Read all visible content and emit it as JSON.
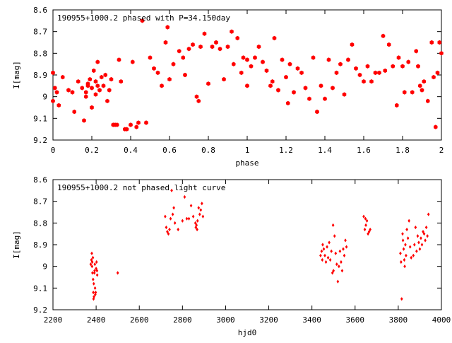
{
  "chart_data": [
    {
      "type": "scatter",
      "title": "190955+1000.2 phased with P=34.150day",
      "xlabel": "phase",
      "ylabel": "I[mag]",
      "xlim": [
        0,
        2
      ],
      "ylim": [
        8.6,
        9.2
      ],
      "y_inverted": true,
      "xticks": [
        0,
        0.2,
        0.4,
        0.6,
        0.8,
        1,
        1.2,
        1.4,
        1.6,
        1.8,
        2
      ],
      "xtick_labels": [
        "0",
        "0.2",
        "0.4",
        "0.6",
        "0.8",
        "1",
        "1.2",
        "1.4",
        "1.6",
        "1.8",
        "2"
      ],
      "yticks": [
        8.6,
        8.7,
        8.8,
        8.9,
        9.0,
        9.1,
        9.2
      ],
      "ytick_labels": [
        "8.6",
        "8.7",
        "8.8",
        "8.9",
        "9",
        "9.1",
        "9.2"
      ],
      "grid": false,
      "marker_color": "#ff0000",
      "marker": "hexagon",
      "series": [
        {
          "x": [
            0.0,
            0.0,
            0.01,
            0.02,
            0.03,
            0.05,
            0.08,
            0.1,
            0.11,
            0.13,
            0.15,
            0.16,
            0.17,
            0.17,
            0.18,
            0.18,
            0.19,
            0.2,
            0.2,
            0.21,
            0.22,
            0.22,
            0.23,
            0.23,
            0.24,
            0.25,
            0.26,
            0.27,
            0.28,
            0.29,
            0.3,
            0.31,
            0.32,
            0.33,
            0.34,
            0.35,
            0.37,
            0.38,
            0.4,
            0.41,
            0.43,
            0.44,
            0.46,
            0.48,
            0.5,
            0.52,
            0.54,
            0.56,
            0.58,
            0.59,
            0.6,
            0.62,
            0.65,
            0.67,
            0.68,
            0.7,
            0.72,
            0.74,
            0.75,
            0.76,
            0.78,
            0.8,
            0.82,
            0.84,
            0.86,
            0.88,
            0.9,
            0.92,
            0.93,
            0.95,
            0.97,
            0.98,
            1.0,
            1.0,
            1.02,
            1.04,
            1.06,
            1.08,
            1.1,
            1.12,
            1.13,
            1.14,
            1.16,
            1.18,
            1.2,
            1.21,
            1.22,
            1.24,
            1.26,
            1.28,
            1.3,
            1.32,
            1.34,
            1.36,
            1.38,
            1.4,
            1.42,
            1.44,
            1.46,
            1.48,
            1.5,
            1.52,
            1.54,
            1.56,
            1.58,
            1.6,
            1.62,
            1.64,
            1.66,
            1.68,
            1.7,
            1.71,
            1.73,
            1.75,
            1.77,
            1.78,
            1.8,
            1.81,
            1.83,
            1.85,
            1.87,
            1.88,
            1.89,
            1.9,
            1.91,
            1.93,
            1.95,
            1.96,
            1.97,
            1.98,
            1.99,
            2.0
          ],
          "y": [
            8.89,
            9.02,
            8.96,
            8.98,
            9.04,
            8.91,
            8.97,
            8.98,
            9.07,
            8.93,
            8.96,
            9.11,
            8.98,
            9.0,
            8.94,
            8.95,
            8.92,
            8.96,
            9.05,
            8.88,
            8.93,
            8.99,
            8.84,
            8.95,
            8.97,
            8.91,
            8.95,
            8.9,
            9.02,
            8.97,
            8.92,
            9.13,
            9.13,
            9.13,
            8.83,
            8.93,
            9.15,
            9.15,
            9.13,
            8.84,
            9.14,
            9.12,
            8.65,
            9.12,
            8.82,
            8.87,
            8.89,
            8.95,
            8.75,
            8.68,
            8.92,
            8.85,
            8.79,
            8.82,
            8.9,
            8.78,
            8.76,
            9.0,
            9.02,
            8.77,
            8.71,
            8.94,
            8.77,
            8.75,
            8.78,
            8.92,
            8.77,
            8.7,
            8.85,
            8.73,
            8.89,
            8.82,
            8.95,
            8.83,
            8.86,
            8.82,
            8.77,
            8.84,
            8.88,
            8.95,
            8.93,
            8.73,
            8.97,
            8.83,
            8.91,
            9.03,
            8.85,
            8.98,
            8.87,
            8.89,
            8.96,
            9.01,
            8.82,
            9.07,
            8.95,
            9.01,
            8.83,
            8.96,
            8.89,
            8.85,
            8.99,
            8.83,
            8.76,
            8.87,
            8.9,
            8.93,
            8.86,
            8.93,
            8.89,
            8.89,
            8.72,
            8.88,
            8.76,
            8.86,
            9.04,
            8.82,
            8.86,
            8.98,
            8.84,
            8.98,
            8.79,
            8.86,
            8.95,
            8.97,
            8.93,
            9.02,
            8.75,
            8.91,
            9.14,
            8.89,
            8.75,
            8.8
          ],
          "name": ""
        }
      ]
    },
    {
      "type": "scatter",
      "title": "190955+1000.2 not phased light curve",
      "xlabel": "hjd0",
      "ylabel": "I[mag]",
      "xlim": [
        2200,
        4000
      ],
      "ylim": [
        8.6,
        9.2
      ],
      "y_inverted": true,
      "xticks": [
        2200,
        2400,
        2600,
        2800,
        3000,
        3200,
        3400,
        3600,
        3800,
        4000
      ],
      "xtick_labels": [
        "2200",
        "2400",
        "2600",
        "2800",
        "3000",
        "3200",
        "3400",
        "3600",
        "3800",
        "4000"
      ],
      "yticks": [
        8.6,
        8.7,
        8.8,
        8.9,
        9.0,
        9.1,
        9.2
      ],
      "ytick_labels": [
        "8.6",
        "8.7",
        "8.8",
        "8.9",
        "9",
        "9.1",
        "9.2"
      ],
      "grid": false,
      "marker_color": "#ff0000",
      "marker": "diamond",
      "series": [
        {
          "x": [
            2375,
            2378,
            2380,
            2381,
            2382,
            2383,
            2385,
            2386,
            2387,
            2388,
            2389,
            2390,
            2392,
            2393,
            2394,
            2395,
            2396,
            2398,
            2400,
            2402,
            2404,
            2405,
            2500,
            2720,
            2725,
            2730,
            2735,
            2740,
            2745,
            2750,
            2755,
            2760,
            2765,
            2780,
            2800,
            2810,
            2820,
            2830,
            2840,
            2850,
            2860,
            2862,
            2865,
            2868,
            2870,
            2875,
            2880,
            2885,
            2890,
            2895,
            3440,
            3445,
            3448,
            3450,
            3455,
            3460,
            3465,
            3470,
            3475,
            3480,
            3485,
            3490,
            3495,
            3498,
            3500,
            3505,
            3510,
            3515,
            3520,
            3525,
            3530,
            3535,
            3540,
            3545,
            3550,
            3555,
            3560,
            3640,
            3645,
            3648,
            3650,
            3655,
            3660,
            3665,
            3670,
            3810,
            3813,
            3816,
            3820,
            3822,
            3825,
            3828,
            3830,
            3833,
            3836,
            3840,
            3845,
            3850,
            3855,
            3860,
            3870,
            3875,
            3880,
            3885,
            3890,
            3895,
            3900,
            3905,
            3910,
            3915,
            3920,
            3925,
            3930,
            3935,
            3940
          ],
          "y": [
            8.99,
            8.97,
            8.94,
            9.0,
            8.98,
            9.03,
            8.96,
            9.06,
            9.12,
            9.15,
            9.08,
            9.14,
            9.03,
            9.02,
            8.99,
            9.1,
            9.13,
            9.12,
            9.01,
            8.98,
            9.02,
            9.04,
            9.03,
            8.77,
            8.82,
            8.84,
            8.85,
            8.83,
            8.78,
            8.65,
            8.76,
            8.73,
            8.8,
            8.83,
            8.79,
            8.68,
            8.78,
            8.78,
            8.72,
            8.77,
            8.8,
            8.82,
            8.81,
            8.83,
            8.79,
            8.73,
            8.76,
            8.74,
            8.71,
            8.77,
            8.95,
            8.93,
            8.97,
            8.9,
            8.92,
            8.95,
            8.98,
            8.91,
            8.96,
            8.89,
            8.97,
            8.93,
            9.03,
            8.81,
            9.02,
            8.86,
            8.94,
            8.99,
            9.07,
            9.0,
            8.93,
            8.98,
            9.02,
            8.92,
            8.95,
            8.88,
            8.91,
            8.77,
            8.83,
            8.78,
            8.81,
            8.79,
            8.85,
            8.84,
            8.83,
            8.94,
            8.98,
            9.15,
            8.85,
            8.88,
            8.92,
            8.97,
            9.0,
            8.9,
            8.95,
            8.83,
            8.87,
            8.79,
            8.91,
            8.96,
            8.95,
            8.9,
            8.82,
            8.93,
            8.86,
            8.89,
            8.92,
            8.87,
            8.9,
            8.84,
            8.85,
            8.88,
            8.82,
            8.86,
            8.76
          ]
        }
      ]
    }
  ]
}
